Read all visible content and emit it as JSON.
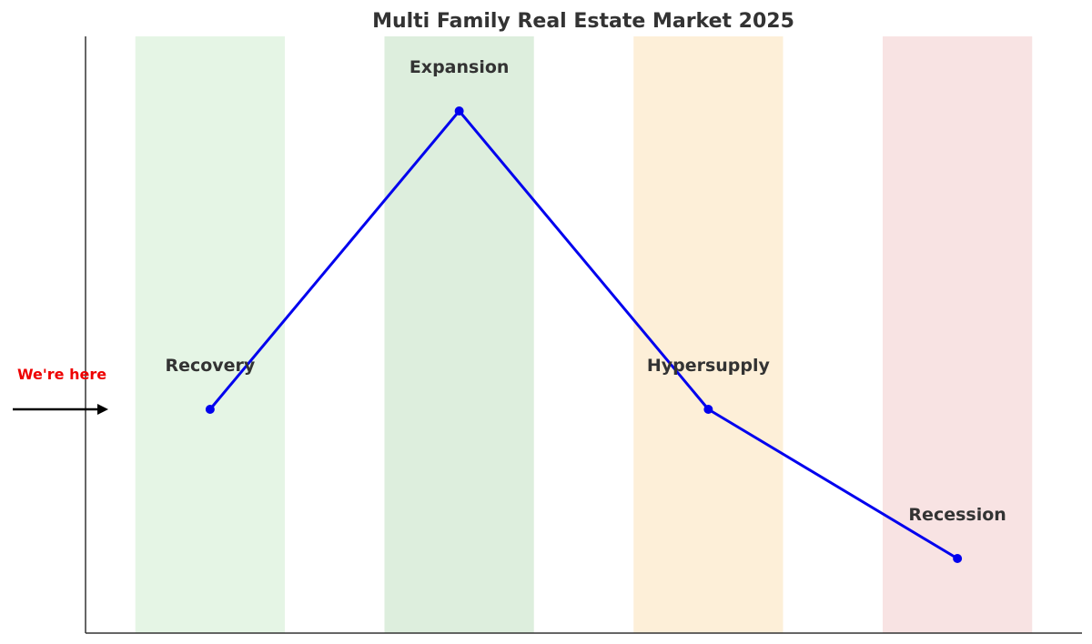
{
  "chart_data": {
    "type": "line",
    "title": "Multi Family Real Estate Market 2025",
    "xlabel": "",
    "ylabel": "",
    "xlim": [
      -1,
      9
    ],
    "ylim": [
      0,
      4
    ],
    "grid": false,
    "phases": [
      {
        "name": "Recovery",
        "span": [
          -0.5,
          1.0
        ],
        "color": "#e5f5e5"
      },
      {
        "name": "Expansion",
        "span": [
          2.0,
          3.5
        ],
        "color": "#ddeedd"
      },
      {
        "name": "Hypersupply",
        "span": [
          4.5,
          6.0
        ],
        "color": "#fdefd8"
      },
      {
        "name": "Recession",
        "span": [
          7.0,
          8.5
        ],
        "color": "#f8e3e3"
      }
    ],
    "series": [
      {
        "x": [
          0.25,
          2.75,
          5.25,
          7.75
        ],
        "y": [
          1.5,
          3.5,
          1.5,
          0.5
        ],
        "color": "#0000ee"
      }
    ],
    "labels": [
      {
        "text": "Recovery",
        "x": 0.25,
        "y": 1.8
      },
      {
        "text": "Expansion",
        "x": 2.75,
        "y": 3.8
      },
      {
        "text": "Hypersupply",
        "x": 5.25,
        "y": 1.8
      },
      {
        "text": "Recession",
        "x": 7.75,
        "y": 0.8
      }
    ],
    "annotation": {
      "text": "We're here",
      "color": "#ee0000",
      "points_to_y": 1.5
    }
  }
}
